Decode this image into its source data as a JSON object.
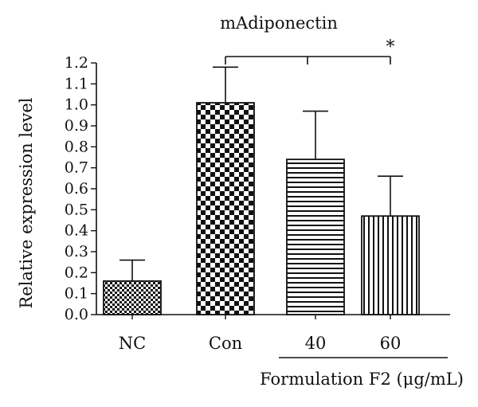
{
  "chart_data": {
    "type": "bar",
    "title": "mAdiponectin",
    "ylabel": "Relative expression level",
    "xlabel": "",
    "ylim": [
      0,
      1.2
    ],
    "yticks": [
      "0.0",
      "0.1",
      "0.2",
      "0.3",
      "0.4",
      "0.5",
      "0.6",
      "0.7",
      "0.8",
      "0.9",
      "1.0",
      "1.1",
      "1.2"
    ],
    "categories": [
      "NC",
      "Con",
      "40",
      "60"
    ],
    "values": [
      0.16,
      1.01,
      0.74,
      0.47
    ],
    "errors": [
      0.1,
      0.17,
      0.23,
      0.19
    ],
    "patterns": [
      "small-checker",
      "large-checker",
      "horizontal-stripes",
      "vertical-stripes"
    ],
    "group_label": "Formulation F2 (μg/mL)",
    "group_categories": [
      "40",
      "60"
    ],
    "significance": {
      "from": "Con",
      "to": [
        "40",
        "60"
      ],
      "mark": "*"
    },
    "grid": false,
    "legend": "none",
    "colors": {
      "bar_stroke": "#111111",
      "fill": "#111111",
      "background": "#ffffff"
    }
  }
}
